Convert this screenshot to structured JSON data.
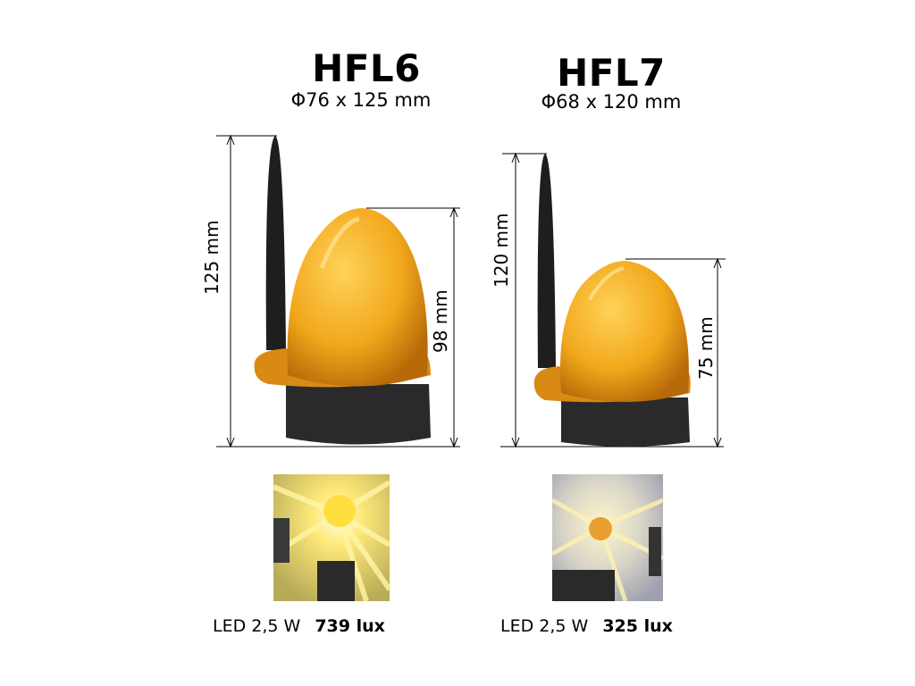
{
  "products": [
    {
      "model": "HFL6",
      "dimensions": "Φ76 x 125 mm",
      "total_height_label": "125 mm",
      "dome_height_label": "98 mm",
      "led": "LED 2,5 W",
      "lux": "739 lux"
    },
    {
      "model": "HFL7",
      "dimensions": "Φ68 x 120 mm",
      "total_height_label": "120 mm",
      "dome_height_label": "75 mm",
      "led": "LED 2,5 W",
      "lux": "325 lux"
    }
  ],
  "colors": {
    "dome": "#f2a81c",
    "base": "#2a2a2a",
    "antenna": "#1e1e1e",
    "glow": "#ffe97a"
  }
}
